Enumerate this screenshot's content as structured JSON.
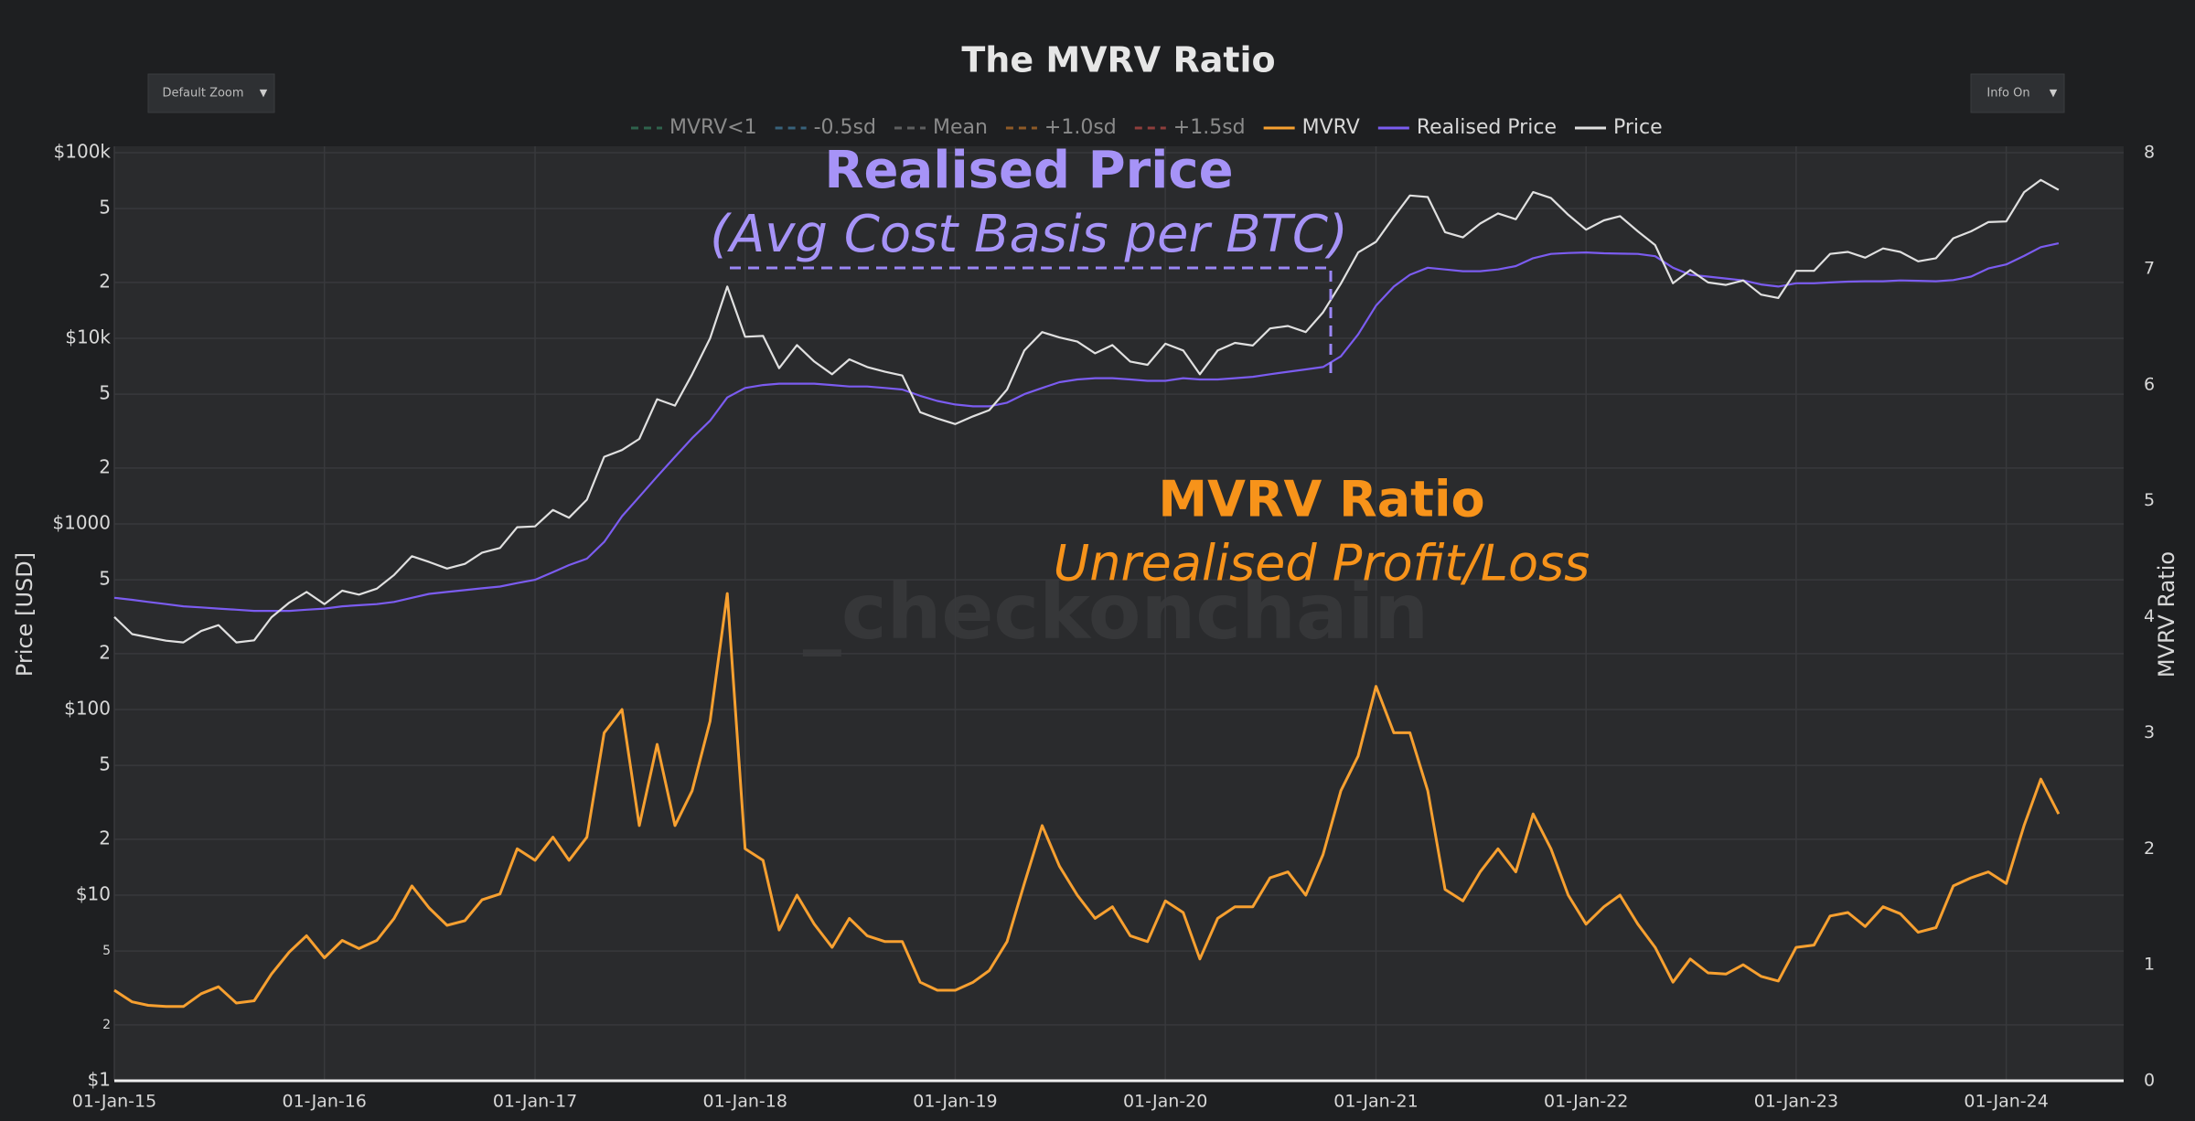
{
  "chart_data": {
    "type": "line",
    "title": "The MVRV Ratio",
    "controls": {
      "zoom": "Default Zoom",
      "info": "Info On"
    },
    "annotations": [
      "Realised Price",
      "(Avg Cost Basis per BTC)",
      "MVRV Ratio",
      "Unrealised Profit/Loss"
    ],
    "watermark": "_checkonchain",
    "ylabel": "Price [USD]",
    "y2label": "MVRV Ratio",
    "log_y": true,
    "grid": true,
    "legend": "top",
    "xlim": [
      "2015-01-01",
      "2024-07-23"
    ],
    "xticks": [
      {
        "value": "2015-01-01",
        "label": "01-Jan-15"
      },
      {
        "value": "2016-01-01",
        "label": "01-Jan-16"
      },
      {
        "value": "2017-01-01",
        "label": "01-Jan-17"
      },
      {
        "value": "2018-01-01",
        "label": "01-Jan-18"
      },
      {
        "value": "2019-01-01",
        "label": "01-Jan-19"
      },
      {
        "value": "2020-01-01",
        "label": "01-Jan-20"
      },
      {
        "value": "2021-01-01",
        "label": "01-Jan-21"
      },
      {
        "value": "2022-01-01",
        "label": "01-Jan-22"
      },
      {
        "value": "2023-01-01",
        "label": "01-Jan-23"
      },
      {
        "value": "2024-01-01",
        "label": "01-Jan-24"
      }
    ],
    "ylim": [
      1,
      100000
    ],
    "yticks": [
      {
        "value": 1,
        "label": "$1"
      },
      2,
      5,
      {
        "value": 10,
        "label": "$10"
      },
      {
        "value": 20,
        "label": "2"
      },
      {
        "value": 50,
        "label": "5"
      },
      {
        "value": 100,
        "label": "$100"
      },
      {
        "value": 200,
        "label": "2"
      },
      {
        "value": 500,
        "label": "5"
      },
      {
        "value": 1000,
        "label": "$1000"
      },
      {
        "value": 2000,
        "label": "2"
      },
      {
        "value": 5000,
        "label": "5"
      },
      {
        "value": 10000,
        "label": "$10k"
      },
      {
        "value": 20000,
        "label": "2"
      },
      {
        "value": 50000,
        "label": "5"
      },
      {
        "value": 100000,
        "label": "$100k"
      }
    ],
    "y2lim": [
      0,
      8
    ],
    "y2ticks": [
      0,
      1,
      2,
      3,
      4,
      5,
      6,
      7,
      8
    ],
    "x": [
      "2015-01-01",
      "2015-02-01",
      "2015-03-01",
      "2015-04-01",
      "2015-05-01",
      "2015-06-01",
      "2015-07-01",
      "2015-08-01",
      "2015-09-01",
      "2015-10-01",
      "2015-11-01",
      "2015-12-01",
      "2016-01-01",
      "2016-02-01",
      "2016-03-01",
      "2016-04-01",
      "2016-05-01",
      "2016-06-01",
      "2016-07-01",
      "2016-08-01",
      "2016-09-01",
      "2016-10-01",
      "2016-11-01",
      "2016-12-01",
      "2017-01-01",
      "2017-02-01",
      "2017-03-01",
      "2017-04-01",
      "2017-05-01",
      "2017-06-01",
      "2017-07-01",
      "2017-08-01",
      "2017-09-01",
      "2017-10-01",
      "2017-11-01",
      "2017-12-01",
      "2018-01-01",
      "2018-02-01",
      "2018-03-01",
      "2018-04-01",
      "2018-05-01",
      "2018-06-01",
      "2018-07-01",
      "2018-08-01",
      "2018-09-01",
      "2018-10-01",
      "2018-11-01",
      "2018-12-01",
      "2019-01-01",
      "2019-02-01",
      "2019-03-01",
      "2019-04-01",
      "2019-05-01",
      "2019-06-01",
      "2019-07-01",
      "2019-08-01",
      "2019-09-01",
      "2019-10-01",
      "2019-11-01",
      "2019-12-01",
      "2020-01-01",
      "2020-02-01",
      "2020-03-01",
      "2020-04-01",
      "2020-05-01",
      "2020-06-01",
      "2020-07-01",
      "2020-08-01",
      "2020-09-01",
      "2020-10-01",
      "2020-11-01",
      "2020-12-01",
      "2021-01-01",
      "2021-02-01",
      "2021-03-01",
      "2021-04-01",
      "2021-05-01",
      "2021-06-01",
      "2021-07-01",
      "2021-08-01",
      "2021-09-01",
      "2021-10-01",
      "2021-11-01",
      "2021-12-01",
      "2022-01-01",
      "2022-02-01",
      "2022-03-01",
      "2022-04-01",
      "2022-05-01",
      "2022-06-01",
      "2022-07-01",
      "2022-08-01",
      "2022-09-01",
      "2022-10-01",
      "2022-11-01",
      "2022-12-01",
      "2023-01-01",
      "2023-02-01",
      "2023-03-01",
      "2023-04-01",
      "2023-05-01",
      "2023-06-01",
      "2023-07-01",
      "2023-08-01",
      "2023-09-01",
      "2023-10-01",
      "2023-11-01",
      "2023-12-01",
      "2024-01-01",
      "2024-02-01",
      "2024-03-01",
      "2024-04-01"
    ],
    "series": [
      {
        "name": "MVRV<1",
        "color": "#3a8f6a",
        "dashed": true,
        "visible": false
      },
      {
        "name": "-0.5sd",
        "color": "#4a90b8",
        "dashed": true,
        "visible": false
      },
      {
        "name": "Mean",
        "color": "#8a8a8a",
        "dashed": true,
        "visible": false
      },
      {
        "name": "+1.0sd",
        "color": "#d9822b",
        "dashed": true,
        "visible": false
      },
      {
        "name": "+1.5sd",
        "color": "#d9534f",
        "dashed": true,
        "visible": false
      },
      {
        "name": "MVRV",
        "color": "#f7a030",
        "axis": "y2",
        "values": [
          0.78,
          0.68,
          0.65,
          0.64,
          0.64,
          0.75,
          0.81,
          0.67,
          0.69,
          0.92,
          1.11,
          1.25,
          1.06,
          1.21,
          1.14,
          1.21,
          1.4,
          1.68,
          1.49,
          1.34,
          1.38,
          1.56,
          1.61,
          2.0,
          1.9,
          2.1,
          1.9,
          2.1,
          3.0,
          3.2,
          2.2,
          2.9,
          2.2,
          2.5,
          3.1,
          4.2,
          2.0,
          1.9,
          1.3,
          1.6,
          1.35,
          1.15,
          1.4,
          1.25,
          1.2,
          1.2,
          0.85,
          0.78,
          0.78,
          0.85,
          0.95,
          1.2,
          1.7,
          2.2,
          1.85,
          1.6,
          1.4,
          1.5,
          1.25,
          1.2,
          1.55,
          1.45,
          1.05,
          1.4,
          1.5,
          1.5,
          1.75,
          1.8,
          1.6,
          1.95,
          2.5,
          2.8,
          3.4,
          3.0,
          3.0,
          2.5,
          1.65,
          1.55,
          1.8,
          2.0,
          1.8,
          2.3,
          2.0,
          1.6,
          1.35,
          1.5,
          1.6,
          1.35,
          1.15,
          0.85,
          1.05,
          0.93,
          0.92,
          1.0,
          0.9,
          0.86,
          1.15,
          1.17,
          1.42,
          1.45,
          1.33,
          1.5,
          1.44,
          1.28,
          1.32,
          1.68,
          1.75,
          1.8,
          1.7,
          2.2,
          2.6,
          2.3
        ]
      },
      {
        "name": "Realised Price",
        "color": "#7b5cf0",
        "values": [
          400,
          390,
          380,
          370,
          360,
          355,
          350,
          345,
          340,
          340,
          340,
          345,
          350,
          360,
          365,
          370,
          380,
          400,
          420,
          430,
          440,
          450,
          460,
          480,
          500,
          550,
          600,
          650,
          800,
          1100,
          1400,
          1800,
          2300,
          2900,
          3600,
          4800,
          5400,
          5600,
          5700,
          5700,
          5700,
          5600,
          5500,
          5500,
          5400,
          5300,
          4900,
          4600,
          4400,
          4300,
          4300,
          4500,
          5000,
          5400,
          5800,
          6000,
          6100,
          6100,
          6000,
          5900,
          5900,
          6100,
          6000,
          6000,
          6100,
          6200,
          6400,
          6600,
          6800,
          7000,
          8000,
          10500,
          15000,
          19000,
          22000,
          24000,
          23500,
          23000,
          23000,
          23500,
          24500,
          27000,
          28500,
          28800,
          29000,
          28700,
          28600,
          28500,
          27700,
          24000,
          22000,
          21500,
          21000,
          20500,
          19500,
          19000,
          19800,
          19800,
          20000,
          20200,
          20300,
          20300,
          20500,
          20400,
          20300,
          20600,
          21500,
          23800,
          25000,
          27800,
          31000,
          32500
        ]
      },
      {
        "name": "Price",
        "color": "#e0e0e0",
        "values": [
          315,
          255,
          245,
          235,
          230,
          265,
          285,
          230,
          236,
          314,
          377,
          430,
          370,
          437,
          416,
          448,
          531,
          670,
          624,
          575,
          609,
          700,
          742,
          960,
          970,
          1190,
          1080,
          1350,
          2300,
          2500,
          2870,
          4700,
          4340,
          6400,
          10000,
          19000,
          10200,
          10300,
          6900,
          9200,
          7500,
          6400,
          7700,
          7000,
          6600,
          6300,
          4000,
          3700,
          3450,
          3800,
          4100,
          5300,
          8600,
          10800,
          10100,
          9600,
          8300,
          9200,
          7500,
          7200,
          9350,
          8600,
          6400,
          8600,
          9450,
          9140,
          11300,
          11650,
          10800,
          13800,
          19700,
          29000,
          33100,
          45100,
          58800,
          57700,
          37300,
          35000,
          41500,
          47100,
          43800,
          61300,
          57000,
          46300,
          38500,
          43200,
          45500,
          37700,
          31800,
          19800,
          23300,
          20000,
          19400,
          20500,
          17200,
          16500,
          23100,
          23100,
          28500,
          29200,
          27200,
          30500,
          29200,
          26000,
          27000,
          34600,
          37700,
          42300,
          42600,
          61200,
          71300,
          63000
        ]
      }
    ]
  }
}
